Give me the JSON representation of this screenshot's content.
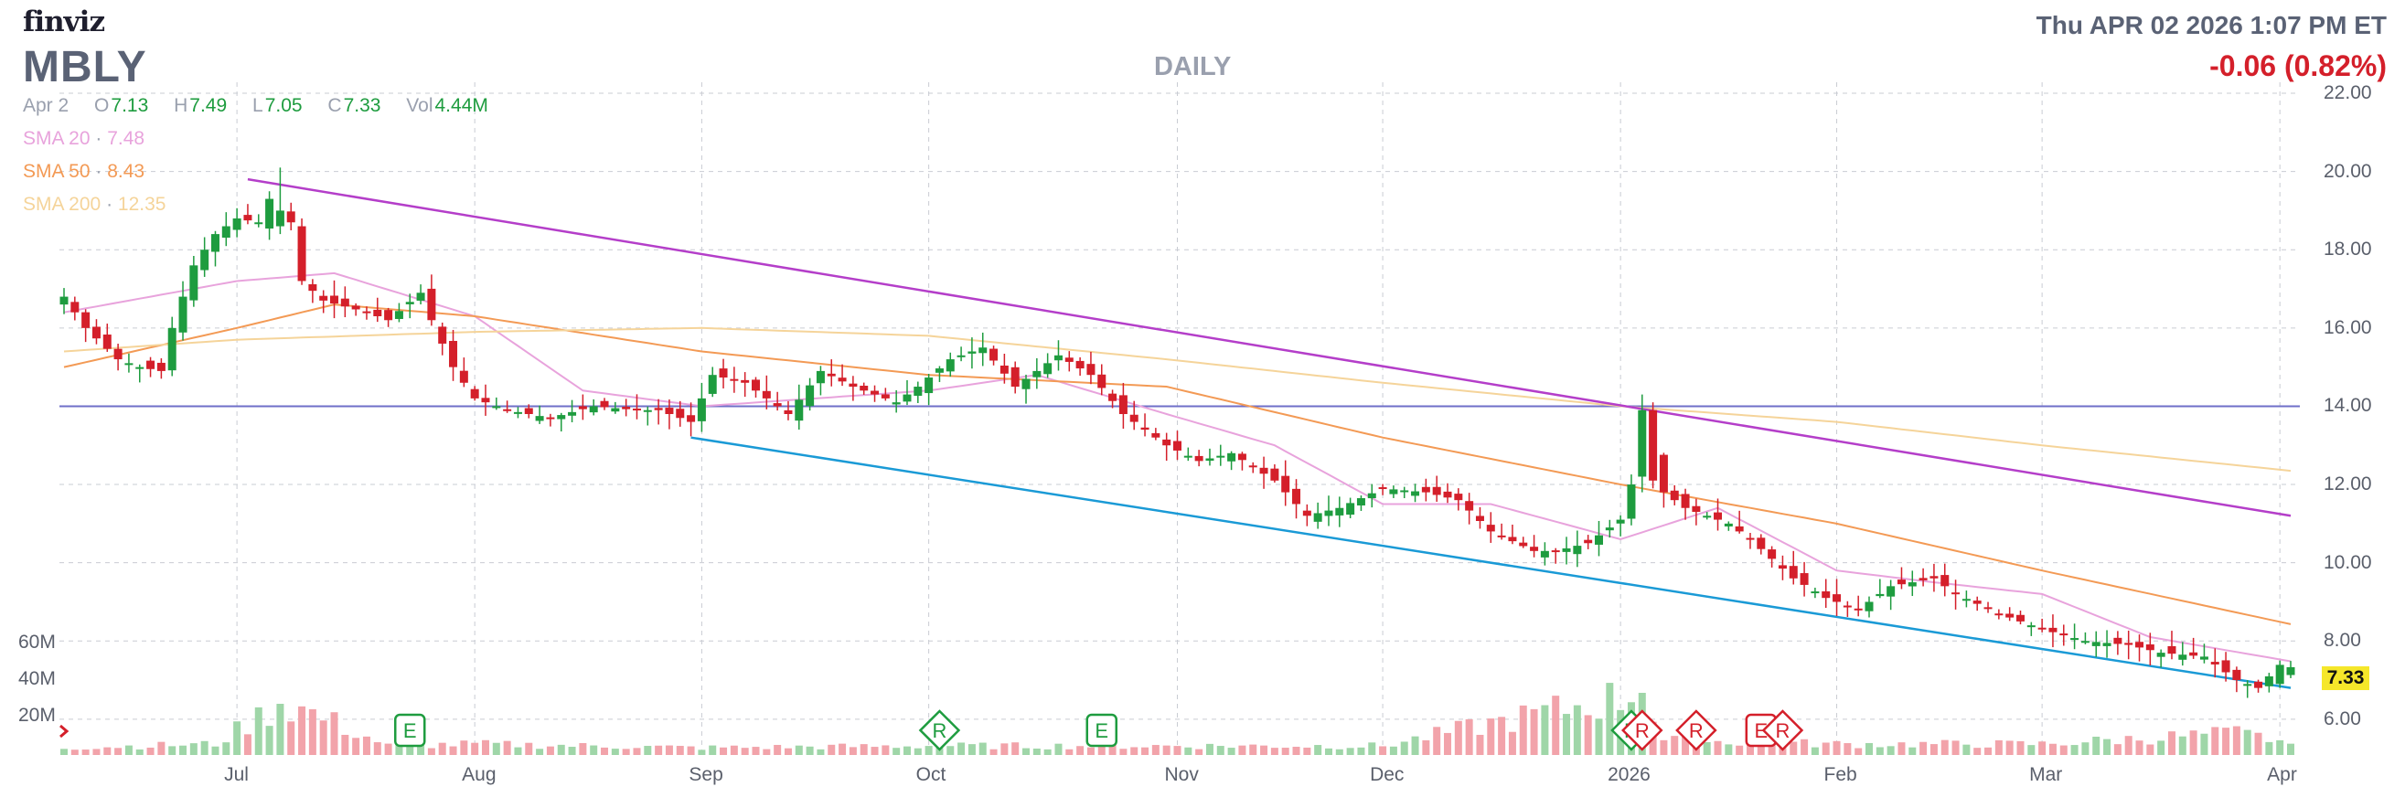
{
  "header": {
    "logo": "finviz",
    "ticker": "MBLY",
    "period": "DAILY",
    "datetime": "Thu APR 02 2026 1:07 PM ET",
    "change": "-0.06 (0.82%)"
  },
  "ohlc": {
    "date": "Apr 2",
    "o_label": "O",
    "o": "7.13",
    "h_label": "H",
    "h": "7.49",
    "l_label": "L",
    "l": "7.05",
    "c_label": "C",
    "c": "7.33",
    "vol_label": "Vol",
    "vol": "4.44M"
  },
  "legend": [
    {
      "label": "SMA 20",
      "sep": "·",
      "value": "7.48",
      "color": "#e8a3dc"
    },
    {
      "label": "SMA 50",
      "sep": "·",
      "value": "8.43",
      "color": "#f39a55"
    },
    {
      "label": "SMA 200",
      "sep": "·",
      "value": "12.35",
      "color": "#f5d49a"
    }
  ],
  "last_price_label": "7.33",
  "colors": {
    "up": "#1e9c3f",
    "down": "#d41f2a",
    "vol_up": "#9fd6a8",
    "vol_down": "#f2a3aa",
    "grid": "#c9ccd3",
    "hline": "#6f6fc8",
    "upper_trend": "#b43ec9",
    "lower_trend": "#1a9ad6"
  },
  "chart_data": {
    "type": "candlestick",
    "ticker": "MBLY",
    "interval": "daily",
    "y_ticks": [
      "6.00",
      "8.00",
      "10.00",
      "12.00",
      "14.00",
      "16.00",
      "18.00",
      "20.00",
      "22.00"
    ],
    "ylim": [
      5.6,
      22.0
    ],
    "x_ticks": [
      "Jul",
      "Aug",
      "Sep",
      "Oct",
      "Nov",
      "Dec",
      "2026",
      "Feb",
      "Mar",
      "Apr"
    ],
    "volume_ticks": [
      "20M",
      "40M",
      "60M"
    ],
    "horizontal_line": 14.0,
    "trendlines": [
      {
        "name": "upper",
        "from": [
          "Jul 2",
          19.8
        ],
        "to": [
          "Apr 2",
          11.2
        ]
      },
      {
        "name": "lower",
        "from": [
          "Aug 29",
          13.2
        ],
        "to": [
          "Apr 2",
          6.8
        ]
      }
    ],
    "event_markers": [
      {
        "label": "E",
        "date": "Jul 24",
        "color": "#1e9c3f"
      },
      {
        "label": "R",
        "date": "Oct 2",
        "color": "#1e9c3f"
      },
      {
        "label": "E",
        "date": "Oct 23",
        "color": "#1e9c3f"
      },
      {
        "label": "R",
        "date": "Jan 5",
        "color": "#1e9c3f"
      },
      {
        "label": "R",
        "date": "Jan 6",
        "color": "#d41f2a"
      },
      {
        "label": "R",
        "date": "Jan 13",
        "color": "#d41f2a"
      },
      {
        "label": "E",
        "date": "Jan 22",
        "color": "#d41f2a"
      },
      {
        "label": "R",
        "date": "Jan 26",
        "color": "#d41f2a"
      }
    ],
    "close_anchors": [
      [
        "Jun 6",
        16.8
      ],
      [
        "Jun 10",
        16.0
      ],
      [
        "Jun 13",
        15.2
      ],
      [
        "Jun 17",
        15.0
      ],
      [
        "Jun 20",
        14.9
      ],
      [
        "Jun 23",
        16.0
      ],
      [
        "Jun 25",
        17.6
      ],
      [
        "Jun 27",
        18.4
      ],
      [
        "Jul 1",
        18.8
      ],
      [
        "Jul 3",
        18.7
      ],
      [
        "Jul 7",
        19.3
      ],
      [
        "Jul 9",
        18.7
      ],
      [
        "Jul 10",
        17.2
      ],
      [
        "Jul 14",
        16.7
      ],
      [
        "Jul 18",
        16.4
      ],
      [
        "Jul 22",
        16.2
      ],
      [
        "Jul 25",
        16.9
      ],
      [
        "Jul 28",
        16.2
      ],
      [
        "Jul 30",
        15.0
      ],
      [
        "Aug 1",
        14.2
      ],
      [
        "Aug 6",
        13.9
      ],
      [
        "Aug 12",
        13.7
      ],
      [
        "Aug 18",
        14.0
      ],
      [
        "Aug 22",
        13.9
      ],
      [
        "Aug 26",
        13.9
      ],
      [
        "Aug 29",
        13.6
      ],
      [
        "Sep 3",
        14.8
      ],
      [
        "Sep 8",
        14.6
      ],
      [
        "Sep 12",
        13.8
      ],
      [
        "Sep 17",
        14.9
      ],
      [
        "Sep 22",
        14.5
      ],
      [
        "Sep 26",
        14.1
      ],
      [
        "Sep 30",
        14.5
      ],
      [
        "Oct 3",
        15.2
      ],
      [
        "Oct 8",
        15.5
      ],
      [
        "Oct 13",
        14.5
      ],
      [
        "Oct 17",
        15.3
      ],
      [
        "Oct 22",
        14.8
      ],
      [
        "Oct 27",
        13.8
      ],
      [
        "Oct 31",
        13.0
      ],
      [
        "Nov 5",
        12.6
      ],
      [
        "Nov 10",
        12.8
      ],
      [
        "Nov 14",
        12.1
      ],
      [
        "Nov 19",
        11.2
      ],
      [
        "Nov 24",
        11.4
      ],
      [
        "Dec 1",
        11.9
      ],
      [
        "Dec 5",
        11.8
      ],
      [
        "Dec 10",
        11.6
      ],
      [
        "Dec 15",
        10.8
      ],
      [
        "Dec 19",
        10.3
      ],
      [
        "Dec 23",
        10.3
      ],
      [
        "Dec 29",
        10.5
      ],
      [
        "Jan 2",
        11.1
      ],
      [
        "Jan 5",
        12.0
      ],
      [
        "Jan 6",
        13.9
      ],
      [
        "Jan 8",
        11.8
      ],
      [
        "Jan 12",
        11.4
      ],
      [
        "Jan 16",
        11.0
      ],
      [
        "Jan 21",
        10.6
      ],
      [
        "Jan 27",
        9.6
      ],
      [
        "Jan 30",
        9.1
      ],
      [
        "Feb 4",
        8.8
      ],
      [
        "Feb 9",
        9.4
      ],
      [
        "Feb 13",
        9.6
      ],
      [
        "Feb 18",
        9.2
      ],
      [
        "Feb 24",
        8.7
      ],
      [
        "Mar 2",
        8.3
      ],
      [
        "Mar 6",
        8.0
      ],
      [
        "Mar 12",
        7.9
      ],
      [
        "Mar 17",
        7.7
      ],
      [
        "Mar 23",
        7.6
      ],
      [
        "Mar 26",
        7.0
      ],
      [
        "Mar 30",
        6.8
      ],
      [
        "Apr 1",
        7.39
      ],
      [
        "Apr 2",
        7.33
      ]
    ],
    "sma20_anchors": [
      [
        "Jun 6",
        16.4
      ],
      [
        "Jul 1",
        17.2
      ],
      [
        "Jul 15",
        17.4
      ],
      [
        "Aug 1",
        16.3
      ],
      [
        "Aug 15",
        14.4
      ],
      [
        "Sep 1",
        14.0
      ],
      [
        "Oct 1",
        14.4
      ],
      [
        "Oct 15",
        14.8
      ],
      [
        "Nov 1",
        13.8
      ],
      [
        "Nov 15",
        13.0
      ],
      [
        "Dec 1",
        11.5
      ],
      [
        "Dec 15",
        11.5
      ],
      [
        "Jan 2",
        10.6
      ],
      [
        "Jan 15",
        11.4
      ],
      [
        "Feb 1",
        9.8
      ],
      [
        "Feb 15",
        9.5
      ],
      [
        "Mar 1",
        9.2
      ],
      [
        "Mar 15",
        8.1
      ],
      [
        "Apr 2",
        7.48
      ]
    ],
    "sma50_anchors": [
      [
        "Jun 6",
        15.0
      ],
      [
        "Jul 1",
        16.0
      ],
      [
        "Jul 15",
        16.6
      ],
      [
        "Aug 1",
        16.3
      ],
      [
        "Sep 1",
        15.4
      ],
      [
        "Oct 1",
        14.8
      ],
      [
        "Nov 1",
        14.5
      ],
      [
        "Dec 1",
        13.2
      ],
      [
        "Jan 2",
        12.0
      ],
      [
        "Feb 1",
        11.0
      ],
      [
        "Mar 1",
        9.8
      ],
      [
        "Apr 2",
        8.43
      ]
    ],
    "sma200_anchors": [
      [
        "Jun 6",
        15.4
      ],
      [
        "Jul 1",
        15.7
      ],
      [
        "Aug 1",
        15.9
      ],
      [
        "Sep 1",
        16.0
      ],
      [
        "Oct 1",
        15.8
      ],
      [
        "Nov 1",
        15.2
      ],
      [
        "Dec 1",
        14.6
      ],
      [
        "Jan 2",
        14.0
      ],
      [
        "Feb 1",
        13.6
      ],
      [
        "Mar 1",
        13.0
      ],
      [
        "Apr 2",
        12.35
      ]
    ],
    "volume_anchors_M": [
      [
        "Jun 6",
        4
      ],
      [
        "Jun 27",
        6
      ],
      [
        "Jul 8",
        28
      ],
      [
        "Jul 10",
        25
      ],
      [
        "Jul 22",
        5
      ],
      [
        "Aug 1",
        6
      ],
      [
        "Sep 1",
        4
      ],
      [
        "Oct 1",
        5
      ],
      [
        "Nov 1",
        5
      ],
      [
        "Dec 1",
        5
      ],
      [
        "Jan 6",
        34
      ],
      [
        "Jan 8",
        8
      ],
      [
        "Feb 1",
        6
      ],
      [
        "Mar 1",
        6
      ],
      [
        "Mar 26",
        12
      ],
      [
        "Apr 1",
        8
      ],
      [
        "Apr 2",
        4.44
      ]
    ]
  }
}
